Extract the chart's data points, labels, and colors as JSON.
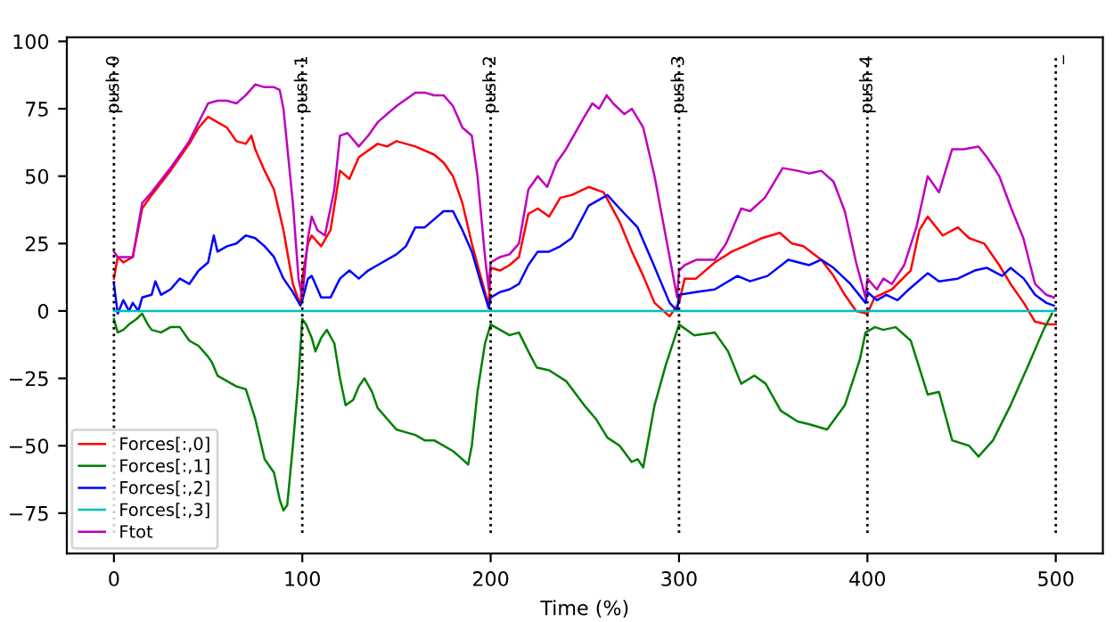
{
  "chart_data": {
    "type": "line",
    "xlabel": "Time (%)",
    "xlim": [
      -25,
      525
    ],
    "ylim": [
      -90,
      101.5
    ],
    "xticks": [
      0,
      100,
      200,
      300,
      400,
      500
    ],
    "yticks": [
      -75,
      -50,
      -25,
      0,
      25,
      50,
      75,
      100
    ],
    "grid": false,
    "legend": "bottom left",
    "line_style": "solid",
    "marker": "none",
    "ref_lines": [
      {
        "axis": "x",
        "value": 0,
        "label": "push 0",
        "color": "#000000",
        "line_style": "dotted"
      },
      {
        "axis": "x",
        "value": 100,
        "label": "push 1",
        "color": "#000000",
        "line_style": "dotted"
      },
      {
        "axis": "x",
        "value": 200,
        "label": "push 2",
        "color": "#000000",
        "line_style": "dotted"
      },
      {
        "axis": "x",
        "value": 300,
        "label": "push 3",
        "color": "#000000",
        "line_style": "dotted"
      },
      {
        "axis": "x",
        "value": 400,
        "label": "push 4",
        "color": "#000000",
        "line_style": "dotted"
      },
      {
        "axis": "x",
        "value": 500,
        "label": "_",
        "color": "#000000",
        "line_style": "dotted"
      }
    ],
    "series": [
      {
        "name": "Forces[:,0]",
        "color": "#ff0000",
        "x": [
          0,
          2,
          5,
          10,
          15,
          20,
          30,
          40,
          45,
          50,
          55,
          60,
          65,
          70,
          73,
          75,
          80,
          85,
          90,
          95,
          99,
          100,
          103,
          105,
          110,
          115,
          120,
          125,
          130,
          140,
          145,
          150,
          160,
          170,
          175,
          180,
          185,
          190,
          195,
          199,
          200,
          205,
          210,
          215,
          220,
          225,
          231,
          237,
          243,
          252,
          260,
          268.5,
          275,
          281,
          287,
          295,
          300,
          303,
          309,
          319,
          328,
          337.7,
          344,
          353.5,
          360,
          366,
          375.5,
          382,
          388,
          394,
          400,
          403.8,
          413,
          423,
          427.6,
          432,
          440,
          448,
          454,
          462,
          470,
          476,
          483,
          489,
          495,
          500
        ],
        "values": [
          12,
          20,
          18,
          20,
          38,
          43,
          52,
          62,
          68,
          72,
          70,
          68,
          63,
          62,
          65,
          60,
          52,
          45,
          30,
          10,
          2,
          12,
          25,
          28,
          24,
          30,
          52,
          49,
          57,
          62,
          61,
          63,
          61,
          58,
          55,
          50,
          40,
          25,
          12,
          2,
          16,
          15,
          17,
          20,
          36,
          38,
          35,
          42,
          43,
          46,
          44,
          33,
          22,
          13,
          3,
          -2,
          3,
          12,
          12,
          18,
          22,
          25,
          27,
          29,
          25,
          24,
          19,
          13,
          6,
          0,
          -1,
          5,
          8,
          15,
          30,
          35,
          28,
          31,
          27,
          25,
          17,
          10,
          3,
          -4,
          -5,
          -5
        ]
      },
      {
        "name": "Forces[:,1]",
        "color": "#008000",
        "x": [
          0,
          2,
          5,
          8,
          12,
          15,
          18,
          20,
          25,
          30,
          35,
          40,
          45,
          50,
          52,
          55,
          60,
          65,
          70,
          75,
          80,
          85,
          88,
          90,
          92,
          95,
          98,
          100,
          102,
          105,
          107,
          110,
          113,
          117,
          120,
          123,
          127,
          130,
          133,
          137,
          140,
          145,
          150,
          155,
          160,
          165,
          170,
          175,
          180,
          185,
          188,
          190,
          193,
          197,
          200,
          205,
          210,
          215,
          220,
          224.5,
          231,
          240,
          249.7,
          255.8,
          262,
          268.5,
          274.8,
          278,
          281,
          287,
          293,
          300,
          308,
          319,
          326,
          333,
          340,
          346,
          354,
          363,
          369,
          378.6,
          388,
          396,
          399,
          404,
          408.5,
          415,
          423,
          432,
          438,
          445,
          454,
          459,
          466.7,
          476,
          485.5,
          493.5,
          498
        ],
        "values": [
          -3,
          -8,
          -7,
          -5,
          -3,
          -1,
          -5,
          -7,
          -8,
          -6,
          -6,
          -11,
          -13,
          -17,
          -19,
          -24,
          -26,
          -28,
          -29,
          -40,
          -55,
          -60,
          -70,
          -74,
          -72,
          -50,
          -25,
          -3,
          -5,
          -10,
          -15,
          -10,
          -7,
          -12,
          -25,
          -35,
          -33,
          -28,
          -25,
          -30,
          -36,
          -40,
          -44,
          -45,
          -46,
          -48,
          -48,
          -50,
          -52,
          -55,
          -57,
          -50,
          -30,
          -12,
          -5,
          -7,
          -9,
          -8,
          -15,
          -21,
          -22,
          -26,
          -35,
          -40,
          -47,
          -50,
          -56,
          -55,
          -58,
          -35,
          -20,
          -5,
          -9,
          -8,
          -15,
          -27,
          -24,
          -27,
          -37,
          -41,
          -42,
          -44,
          -35,
          -18,
          -8,
          -6,
          -7,
          -6,
          -11,
          -31,
          -30,
          -48,
          -50,
          -54,
          -48,
          -35,
          -20,
          -7,
          -1
        ]
      },
      {
        "name": "Forces[:,2]",
        "color": "#0000ff",
        "x": [
          0,
          2,
          5,
          8,
          10,
          13,
          15,
          20,
          22,
          25,
          30,
          35,
          40,
          45,
          50,
          53,
          55,
          60,
          65,
          70,
          75,
          80,
          85,
          90,
          95,
          99,
          100,
          103,
          105,
          110,
          115,
          120,
          125,
          130,
          135,
          140,
          150,
          155,
          160,
          165,
          170,
          175,
          180,
          185,
          190,
          195,
          199,
          200,
          205,
          210,
          215,
          220,
          225,
          231,
          237,
          243,
          252,
          262,
          268.5,
          278,
          286,
          295,
          299,
          300,
          309,
          319,
          331,
          337.7,
          347,
          358,
          369,
          375.5,
          382,
          391,
          399,
          400,
          405,
          410,
          416,
          422,
          432,
          438,
          448,
          457,
          463.5,
          471.5,
          476,
          483,
          489,
          495,
          499
        ],
        "values": [
          10,
          -1,
          4,
          0,
          3,
          0,
          5,
          6,
          11,
          6,
          8,
          12,
          10,
          15,
          18,
          28,
          22,
          24,
          25,
          28,
          27,
          24,
          20,
          12,
          7,
          2,
          4,
          12,
          13,
          5,
          5,
          12,
          15,
          12,
          15,
          17,
          21,
          24,
          31,
          31,
          34,
          37,
          37,
          30,
          22,
          10,
          1,
          5,
          7,
          8,
          10,
          17,
          22,
          22,
          24,
          27,
          39,
          43,
          38,
          31,
          18,
          3,
          0,
          6,
          7,
          8,
          13,
          11,
          13,
          19,
          17,
          19,
          16,
          10,
          3,
          7,
          4,
          6,
          4,
          8,
          14,
          11,
          12,
          15,
          16,
          13,
          16,
          12,
          6,
          3,
          2
        ]
      },
      {
        "name": "Forces[:,3]",
        "color": "#00bfbf",
        "x": [
          0,
          500
        ],
        "values": [
          0,
          0
        ]
      },
      {
        "name": "Ftot",
        "color": "#bf00bf",
        "x": [
          0,
          2,
          5,
          10,
          15,
          20,
          30,
          40,
          45,
          50,
          55,
          60,
          65,
          70,
          75,
          80,
          85,
          88,
          90,
          95,
          98,
          100,
          103,
          105,
          108,
          112,
          117,
          120,
          124,
          130,
          135,
          140,
          150,
          160,
          165,
          170,
          175,
          180,
          185,
          190,
          193,
          197,
          199,
          200,
          205,
          210,
          215,
          220,
          225,
          230,
          235,
          240,
          249.7,
          254,
          257.5,
          261.6,
          265,
          271,
          275,
          281,
          287,
          295,
          299,
          300,
          303,
          309.4,
          319,
          325,
          333,
          337.7,
          345.6,
          355,
          363,
          369,
          375.5,
          382,
          388,
          394,
          399,
          400,
          405,
          408.5,
          413,
          419.5,
          426,
          432,
          438,
          445,
          451,
          459,
          463.5,
          470,
          476.4,
          482.8,
          489,
          495,
          499
        ],
        "values": [
          22,
          20,
          20,
          20,
          40,
          44,
          53,
          63,
          70,
          77,
          78,
          78,
          77,
          80,
          84,
          83,
          83,
          82,
          75,
          40,
          12,
          5,
          27,
          35,
          30,
          28,
          45,
          65,
          66,
          61,
          65,
          70,
          76,
          81,
          81,
          80,
          80,
          76,
          68,
          65,
          50,
          20,
          8,
          18,
          20,
          21,
          25,
          45,
          50,
          46,
          55,
          60,
          72,
          77,
          75,
          80,
          77,
          73,
          75,
          68,
          50,
          20,
          5,
          15,
          17,
          19,
          19,
          25,
          38,
          37,
          42,
          53,
          52,
          51,
          52,
          48,
          37,
          18,
          5,
          12,
          8,
          12,
          10,
          17,
          31,
          50,
          44,
          60,
          60,
          61,
          57,
          50,
          38,
          27,
          10,
          6,
          5
        ]
      }
    ]
  }
}
